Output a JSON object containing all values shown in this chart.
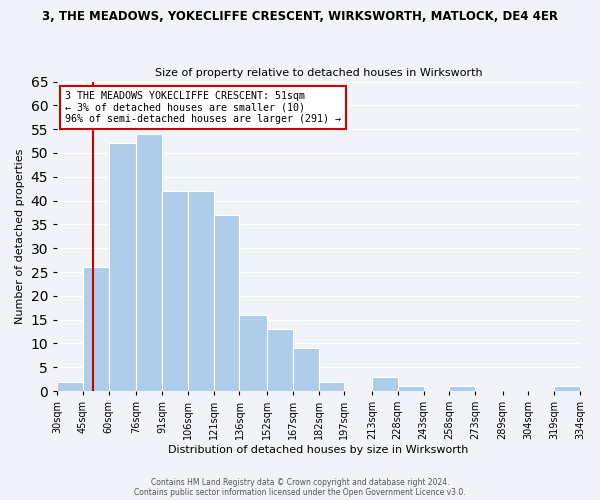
{
  "title": "3, THE MEADOWS, YOKECLIFFE CRESCENT, WIRKSWORTH, MATLOCK, DE4 4ER",
  "subtitle": "Size of property relative to detached houses in Wirksworth",
  "xlabel": "Distribution of detached houses by size in Wirksworth",
  "ylabel": "Number of detached properties",
  "bin_edges": [
    30,
    45,
    60,
    76,
    91,
    106,
    121,
    136,
    152,
    167,
    182,
    197,
    213,
    228,
    243,
    258,
    273,
    289,
    304,
    319,
    334
  ],
  "counts": [
    2,
    26,
    52,
    54,
    42,
    42,
    37,
    16,
    13,
    9,
    2,
    0,
    3,
    1,
    0,
    1,
    0,
    0,
    0,
    1
  ],
  "bar_color": "#aecde8",
  "bar_edge_color": "#ffffff",
  "property_line_x": 51,
  "property_line_color": "#cc0000",
  "annotation_title": "3 THE MEADOWS YOKECLIFFE CRESCENT: 51sqm",
  "annotation_line1": "← 3% of detached houses are smaller (10)",
  "annotation_line2": "96% of semi-detached houses are larger (291) →",
  "annotation_box_color": "#ffffff",
  "annotation_box_edge": "#cc0000",
  "ylim": [
    0,
    65
  ],
  "yticks": [
    0,
    5,
    10,
    15,
    20,
    25,
    30,
    35,
    40,
    45,
    50,
    55,
    60,
    65
  ],
  "tick_labels": [
    "30sqm",
    "45sqm",
    "60sqm",
    "76sqm",
    "91sqm",
    "106sqm",
    "121sqm",
    "136sqm",
    "152sqm",
    "167sqm",
    "182sqm",
    "197sqm",
    "213sqm",
    "228sqm",
    "243sqm",
    "258sqm",
    "273sqm",
    "289sqm",
    "304sqm",
    "319sqm",
    "334sqm"
  ],
  "footer1": "Contains HM Land Registry data © Crown copyright and database right 2024.",
  "footer2": "Contains public sector information licensed under the Open Government Licence v3.0.",
  "background_color": "#f0f4f8",
  "grid_color": "#ffffff"
}
